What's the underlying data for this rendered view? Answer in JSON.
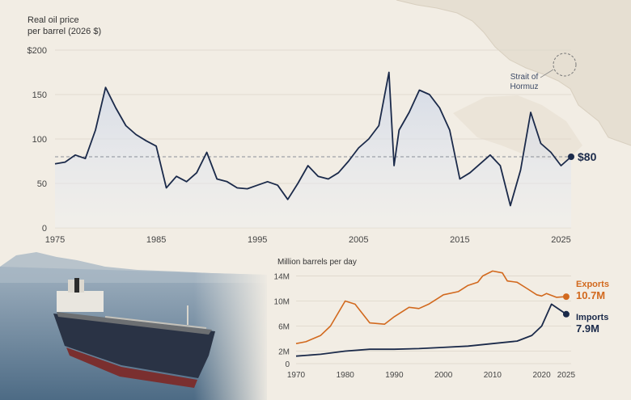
{
  "map": {
    "label_line1": "Strait of",
    "label_line2": "Hormuz"
  },
  "colors": {
    "background": "#f2ede4",
    "price_line": "#1b2a4a",
    "exports": "#d2691e",
    "imports": "#1b2a4a",
    "land": "#e4dccf",
    "sea": "#7d93a6"
  },
  "chart_data": [
    {
      "type": "area",
      "ylabel_line1": "Real oil price",
      "ylabel_line2": "per barrel (2026 $)",
      "y_ticks": [
        "$200",
        "150",
        "100",
        "50",
        "0"
      ],
      "x_ticks": [
        "1975",
        "1985",
        "1995",
        "2005",
        "2015",
        "2025"
      ],
      "xlim": [
        1975,
        2026
      ],
      "ylim": [
        0,
        200
      ],
      "reference_line": 80,
      "latest_label": "$80",
      "series": [
        {
          "x": [
            1975,
            1976,
            1977,
            1978,
            1979,
            1980,
            1981,
            1982,
            1983,
            1984,
            1985,
            1986,
            1987,
            1988,
            1989,
            1990,
            1991,
            1992,
            1993,
            1994,
            1995,
            1996,
            1997,
            1998,
            1999,
            2000,
            2001,
            2002,
            2003,
            2004,
            2005,
            2006,
            2007,
            2008,
            2008.5,
            2009,
            2010,
            2011,
            2012,
            2013,
            2014,
            2015,
            2016,
            2017,
            2018,
            2019,
            2020,
            2021,
            2022,
            2023,
            2024,
            2025,
            2026
          ],
          "y": [
            72,
            74,
            82,
            78,
            110,
            158,
            135,
            115,
            105,
            98,
            92,
            45,
            58,
            52,
            62,
            85,
            55,
            52,
            45,
            44,
            48,
            52,
            48,
            32,
            50,
            70,
            58,
            55,
            62,
            75,
            90,
            100,
            115,
            175,
            70,
            110,
            130,
            155,
            150,
            135,
            110,
            55,
            62,
            72,
            82,
            70,
            25,
            65,
            130,
            95,
            85,
            70,
            80
          ]
        }
      ]
    },
    {
      "type": "line",
      "ylabel": "Million barrels per day",
      "y_ticks": [
        "14M",
        "10M",
        "6M",
        "2M",
        "0"
      ],
      "x_ticks": [
        "1970",
        "1980",
        "1990",
        "2000",
        "2010",
        "2020",
        "2025"
      ],
      "xlim": [
        1970,
        2026
      ],
      "ylim": [
        0,
        15
      ],
      "series": [
        {
          "name": "Exports",
          "end_label": "10.7M",
          "x": [
            1970,
            1972,
            1975,
            1977,
            1980,
            1982,
            1985,
            1988,
            1990,
            1993,
            1995,
            1997,
            1999,
            2000,
            2003,
            2005,
            2007,
            2008,
            2010,
            2012,
            2013,
            2015,
            2017,
            2019,
            2020,
            2021,
            2023,
            2025
          ],
          "y": [
            3.2,
            3.5,
            4.5,
            6,
            10,
            9.5,
            6.5,
            6.3,
            7.5,
            9,
            8.8,
            9.5,
            10.5,
            11,
            11.5,
            12.5,
            13,
            14,
            14.8,
            14.5,
            13.2,
            13,
            12,
            11,
            10.8,
            11.2,
            10.6,
            10.7
          ]
        },
        {
          "name": "Imports",
          "end_label": "7.9M",
          "x": [
            1970,
            1975,
            1980,
            1985,
            1990,
            1995,
            2000,
            2005,
            2010,
            2015,
            2018,
            2020,
            2022,
            2025
          ],
          "y": [
            1.2,
            1.5,
            2,
            2.3,
            2.3,
            2.4,
            2.6,
            2.8,
            3.2,
            3.6,
            4.5,
            6,
            9.5,
            7.9
          ]
        }
      ]
    }
  ]
}
